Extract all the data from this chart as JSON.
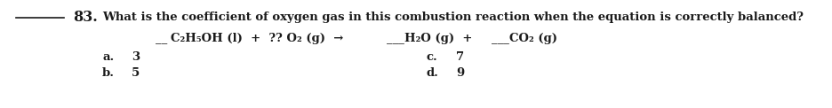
{
  "bg_color": "#ffffff",
  "text_color": "#1a1a1a",
  "question_number": "83",
  "question_text": "What is the coefficient of oxygen gas in this combustion reaction when the equation is correctly balanced?",
  "equation_line": "__C₂H₅OH (l)  +  ?? O₂ (g)  →  ___  H₂O (g)  +  ___  CO₂ (g)",
  "choices": [
    {
      "label": "a.",
      "value": "3",
      "col": 0
    },
    {
      "label": "b.",
      "value": "5",
      "col": 0
    },
    {
      "label": "c.",
      "value": "7",
      "col": 1
    },
    {
      "label": "d.",
      "value": "9",
      "col": 1
    }
  ],
  "font_size_q": 9.5,
  "font_size_num": 11.5,
  "font_size_choice": 9.5
}
